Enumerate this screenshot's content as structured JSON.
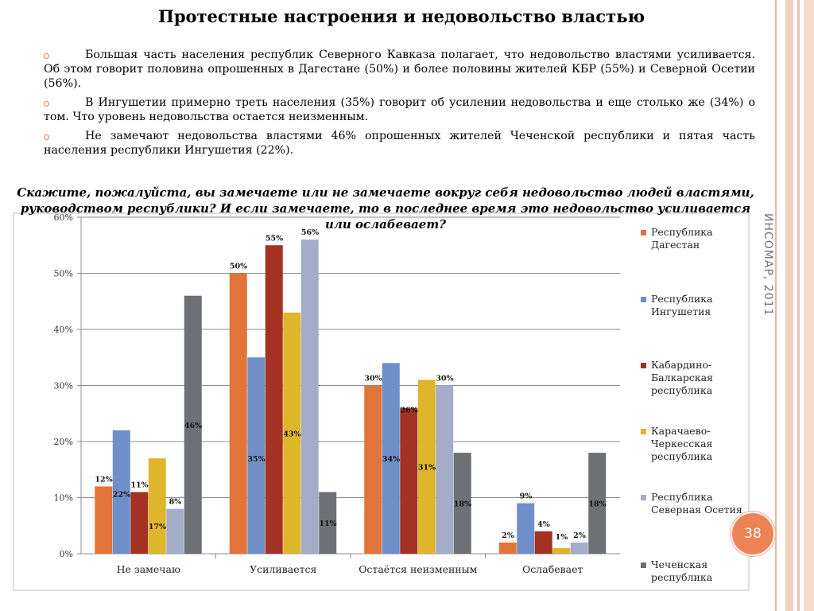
{
  "title": "Протестные настроения и недовольство властью",
  "bullets": [
    "Большая часть населения республик Северного Кавказа полагает, что недовольство властями усиливается. Об этом говорит половина опрошенных в Дагестане (50%) и более половины жителей КБР (55%) и Северной Осетии (56%).",
    "В Ингушетии примерно треть населения (35%) говорит об усилении недовольства и еще столько же (34%) о том. Что уровень недовольства остается неизменным.",
    "Не замечают недовольства властями 46% опрошенных жителей Чеченской республики и пятая часть населения республики Ингушетия (22%)."
  ],
  "question": "Скажите, пожалуйста, вы замечаете или не замечаете вокруг себя недовольство людей властями, руководством республики? И если замечаете, то в последнее время это недовольство усиливается или ослабевает?",
  "credit": "ИНСОМАР, 2011",
  "page_number": "38",
  "chart_data": {
    "type": "bar",
    "categories": [
      "Не замечаю",
      "Усиливается",
      "Остаётся неизменным",
      "Ослабевает"
    ],
    "ylim": [
      0,
      60
    ],
    "yticks": [
      "0%",
      "10%",
      "20%",
      "30%",
      "40%",
      "50%",
      "60%"
    ],
    "grid": true,
    "legend_position": "right",
    "series": [
      {
        "name": "Республика Дагестан",
        "color": "#e2743a",
        "values": [
          12,
          50,
          30,
          2
        ],
        "labels": [
          "12%",
          "50%",
          "30%",
          "2%"
        ]
      },
      {
        "name": "Республика Ингушетия",
        "color": "#6f8fc9",
        "values": [
          22,
          35,
          34,
          9
        ],
        "labels": [
          "22%",
          "35%",
          "34%",
          "9%"
        ]
      },
      {
        "name": "Кабардино-Балкарская республика",
        "color": "#a33223",
        "values": [
          11,
          55,
          26,
          4
        ],
        "labels": [
          "11%",
          "55%",
          "26%",
          "4%"
        ]
      },
      {
        "name": "Карачаево-Черкесская республика",
        "color": "#dfb52c",
        "values": [
          17,
          43,
          31,
          1
        ],
        "labels": [
          "17%",
          "43%",
          "31%",
          "1%"
        ]
      },
      {
        "name": "Республика Северная Осетия",
        "color": "#a4adc8",
        "values": [
          8,
          56,
          30,
          2
        ],
        "labels": [
          "8%",
          "56%",
          "30%",
          "2%"
        ]
      },
      {
        "name": "Чеченская республика",
        "color": "#6d7074",
        "values": [
          46,
          11,
          18,
          18
        ],
        "labels": [
          "46%",
          "11%",
          "18%",
          "18%"
        ]
      }
    ]
  }
}
